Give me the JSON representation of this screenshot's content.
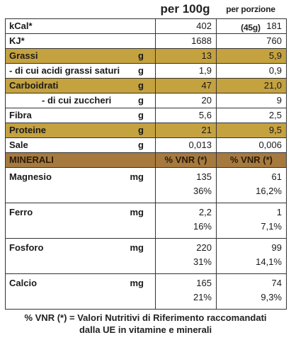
{
  "header": {
    "per100": "per 100g",
    "perServing": "per porzione (45g)"
  },
  "nutrients": [
    {
      "label": "kCal*",
      "unit": "",
      "v100": "402",
      "vserv": "181",
      "hl": false,
      "indent": 0
    },
    {
      "label": "KJ*",
      "unit": "",
      "v100": "1688",
      "vserv": "760",
      "hl": false,
      "indent": 0
    },
    {
      "label": "Grassi",
      "unit": "g",
      "v100": "13",
      "vserv": "5,9",
      "hl": true,
      "indent": 0
    },
    {
      "label": "- di cui acidi grassi saturi",
      "unit": "g",
      "v100": "1,9",
      "vserv": "0,9",
      "hl": false,
      "indent": 0
    },
    {
      "label": "Carboidrati",
      "unit": "g",
      "v100": "47",
      "vserv": "21,0",
      "hl": true,
      "indent": 0
    },
    {
      "label": "- di cui zuccheri",
      "unit": "g",
      "v100": "20",
      "vserv": "9",
      "hl": false,
      "indent": 2
    },
    {
      "label": "Fibra",
      "unit": "g",
      "v100": "5,6",
      "vserv": "2,5",
      "hl": false,
      "indent": 0
    },
    {
      "label": "Proteine",
      "unit": "g",
      "v100": "21",
      "vserv": "9,5",
      "hl": true,
      "indent": 0
    },
    {
      "label": "Sale",
      "unit": "g",
      "v100": "0,013",
      "vserv": "0,006",
      "hl": false,
      "indent": 0
    }
  ],
  "minerals_header": {
    "label": "MINERALI",
    "col1": "% VNR (*)",
    "col2": "% VNR (*)"
  },
  "minerals": [
    {
      "label": "Magnesio",
      "unit": "mg",
      "v100": "135",
      "p100": "36%",
      "vserv": "61",
      "pserv": "16,2%"
    },
    {
      "label": "Ferro",
      "unit": "mg",
      "v100": "2,2",
      "p100": "16%",
      "vserv": "1",
      "pserv": "7,1%"
    },
    {
      "label": "Fosforo",
      "unit": "mg",
      "v100": "220",
      "p100": "31%",
      "vserv": "99",
      "pserv": "14,1%"
    },
    {
      "label": "Calcio",
      "unit": "mg",
      "v100": "165",
      "p100": "21%",
      "vserv": "74",
      "pserv": "9,3%"
    }
  ],
  "footnote": {
    "line1": "% VNR (*) = Valori Nutritivi di Riferimento raccomandati",
    "line2": "dalla UE in vitamine e minerali"
  },
  "colors": {
    "highlight": "#c4a240",
    "minerals_header": "#a67a3f",
    "border": "#333333"
  }
}
